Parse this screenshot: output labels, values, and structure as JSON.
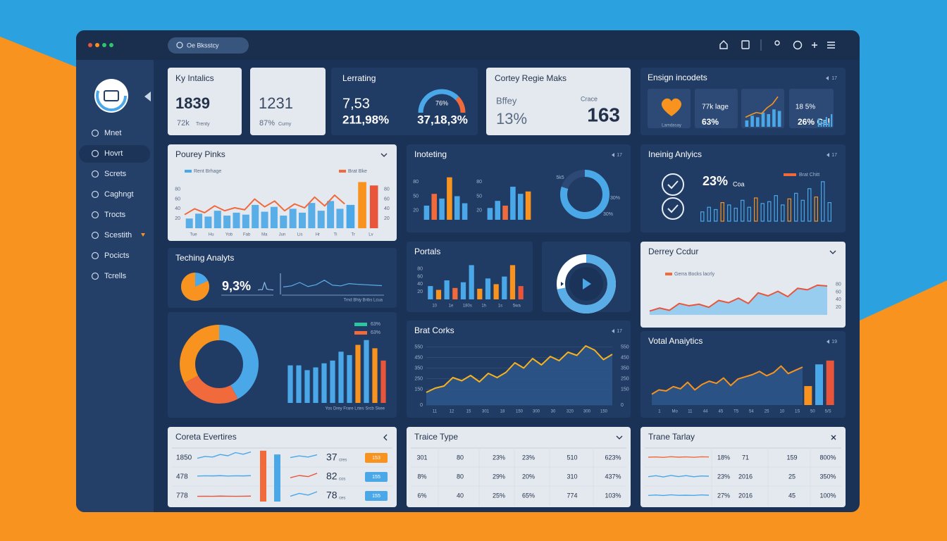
{
  "window": {
    "search": "Oe Bksstcy"
  },
  "sidebar": {
    "items": [
      "Mnet",
      "Hovrt",
      "Screts",
      "Caghngt",
      "Trocts",
      "Scestith",
      "Pocicts",
      "Tcrells"
    ]
  },
  "top_cards": {
    "metrics": {
      "title": "Ky Intalics",
      "value": "1839",
      "sub": "72k",
      "note": "Trenty"
    },
    "metrics2": {
      "value": "1231",
      "sub": "87%",
      "note": "Cumy"
    },
    "lerrating": {
      "title": "Lerrating",
      "value": "7,53",
      "sub": "211,98%",
      "gauge_value": 76,
      "gauge_label": "76%",
      "gauge_caption": "37,18,3%"
    },
    "regie": {
      "title": "Cortey Regie Maks",
      "left_label": "Bffey",
      "left_value": "13%",
      "right_label": "Crace",
      "right_value": "163"
    },
    "ensign": {
      "title": "Ensign incodets",
      "control": "17",
      "caption": "Lamdasay",
      "tile2_label": "77k lage",
      "tile2_value": "63%",
      "trend_bars": [
        20,
        35,
        30,
        45,
        40,
        55,
        50
      ],
      "trend_line": [
        30,
        38,
        45,
        42,
        60,
        72,
        95
      ],
      "tile4_label": "18 5%",
      "tile4_value": "26% Cal",
      "tile4_bars": [
        30,
        20,
        25,
        35,
        15,
        45
      ]
    }
  },
  "panels": [
    {
      "type": "area_bars",
      "title": "Pourey Pinks",
      "legend": [
        {
          "name": "Rent Brhage",
          "color": "#4aa8e8"
        },
        {
          "name": "Brat Bke",
          "color": "#f06a3c"
        }
      ],
      "ylim": [
        0,
        100
      ],
      "yticks": [
        20,
        40,
        60,
        80
      ],
      "line": [
        28,
        40,
        32,
        46,
        36,
        42,
        38,
        60,
        44,
        56,
        36,
        50,
        42,
        64,
        46,
        68,
        50
      ],
      "bars": [
        20,
        30,
        24,
        36,
        26,
        32,
        28,
        48,
        34,
        44,
        26,
        40,
        32,
        52,
        36,
        56,
        40
      ],
      "line_color": "#f06a3c",
      "fill_color": "#8cc8ef",
      "bar_color": "#5aaee8",
      "end_bars": [
        {
          "value": 48,
          "color": "#4aa8e8"
        },
        {
          "value": 95,
          "color": "#f7931e"
        },
        {
          "value": 88,
          "color": "#e8553a"
        }
      ],
      "xlabels": [
        "Tue",
        "Hu",
        "Yob",
        "Fab",
        "Ma",
        "Jun",
        "Lis",
        "Hr",
        "Ti",
        "Tr",
        "Lv"
      ]
    },
    {
      "type": "bar_groups",
      "title": "Inoteting",
      "control": "17",
      "ylim": [
        0,
        100
      ],
      "yticks": [
        20,
        50,
        80
      ],
      "groups": [
        {
          "values": [
            30,
            55,
            45,
            90,
            50,
            35
          ],
          "colors": [
            "#4aa8e8",
            "#f06a3c",
            "#4aa8e8",
            "#f7931e",
            "#4aa8e8",
            "#4aa8e8"
          ]
        },
        {
          "values": [
            25,
            40,
            30,
            70,
            55,
            60
          ],
          "colors": [
            "#4aa8e8",
            "#4aa8e8",
            "#f06a3c",
            "#4aa8e8",
            "#4aa8e8",
            "#f7931e"
          ]
        }
      ],
      "donut": 80,
      "donut_color": "#4aa8e8",
      "donut_labels": [
        "5k5",
        "30%",
        "30%"
      ]
    },
    {
      "type": "outline_bars",
      "title": "Ineinig Anlyics",
      "control": "17",
      "value": "23%",
      "unit": "Coa",
      "legend": [
        {
          "name": "Brat Chitt",
          "color": "#f06a3c"
        }
      ],
      "ylim": [
        0,
        100
      ],
      "values": [
        20,
        30,
        25,
        40,
        35,
        28,
        45,
        30,
        50,
        38,
        42,
        55,
        35,
        48,
        60,
        45,
        70,
        52,
        85,
        40
      ],
      "colors": [
        "#4aa8e8",
        "#4aa8e8",
        "#4aa8e8",
        "#f7931e",
        "#4aa8e8",
        "#4aa8e8",
        "#4aa8e8",
        "#4aa8e8",
        "#f7931e",
        "#4aa8e8",
        "#4aa8e8",
        "#4aa8e8",
        "#4aa8e8",
        "#f7931e",
        "#4aa8e8",
        "#4aa8e8",
        "#4aa8e8",
        "#f7931e",
        "#4aa8e8",
        "#4aa8e8"
      ]
    },
    {
      "type": "pie_spark",
      "title": "Teching Analyts",
      "pie": 82,
      "colors": [
        "#f7931e",
        "#4aa8e8"
      ],
      "value": "9,3%",
      "spark": [
        20,
        22,
        21,
        60,
        25,
        22,
        21,
        20
      ],
      "spark2": [
        30,
        35,
        50,
        32,
        40,
        60,
        38,
        35,
        45,
        42,
        40,
        38,
        36
      ],
      "caption": "Trnd Bhiy Bribs Lcua"
    },
    {
      "type": "donut_bars",
      "legend": [
        {
          "name": "63%",
          "color": "#2ec4a0"
        },
        {
          "name": "63%",
          "color": "#f06a3c"
        }
      ],
      "donut": [
        {
          "value": 42,
          "color": "#4aa8e8"
        },
        {
          "value": 25,
          "color": "#f06a3c"
        },
        {
          "value": 33,
          "color": "#f7931e"
        }
      ],
      "ylim": [
        0,
        100
      ],
      "values": [
        55,
        55,
        48,
        52,
        58,
        62,
        75,
        70,
        85,
        92,
        80,
        62
      ],
      "colors": [
        "#4aa8e8",
        "#4aa8e8",
        "#4aa8e8",
        "#4aa8e8",
        "#4aa8e8",
        "#4aa8e8",
        "#4aa8e8",
        "#4aa8e8",
        "#f7931e",
        "#4aa8e8",
        "#f7931e",
        "#e8553a"
      ],
      "caption": "Yos Drey Frare Lrtes Srcb Skee"
    },
    {
      "type": "bar",
      "title": "Portals",
      "ylim": [
        0,
        100
      ],
      "yticks": [
        20,
        40,
        60,
        80
      ],
      "values": [
        35,
        25,
        50,
        30,
        45,
        90,
        28,
        55,
        40,
        60,
        90,
        35
      ],
      "colors": [
        "#4aa8e8",
        "#f7931e",
        "#4aa8e8",
        "#f06a3c",
        "#4aa8e8",
        "#4aa8e8",
        "#f7931e",
        "#4aa8e8",
        "#f7931e",
        "#4aa8e8",
        "#f7931e",
        "#e8553a"
      ],
      "xlabels": [
        "10",
        "1e",
        "180s",
        "1h",
        "1s",
        "5wa"
      ]
    },
    {
      "type": "play_donut",
      "donut": 72,
      "donut_color": "#5aaee8"
    },
    {
      "type": "area",
      "title": "Derrey Ccdur",
      "legend": [
        {
          "name": "Gerra Bocks lacrly",
          "color": "#f06a3c"
        }
      ],
      "ylim": [
        0,
        100
      ],
      "yticks": [
        20,
        40,
        60,
        80
      ],
      "values": [
        10,
        18,
        12,
        30,
        24,
        28,
        20,
        38,
        32,
        44,
        30,
        58,
        50,
        62,
        48,
        70,
        66,
        78,
        76
      ],
      "line_color": "#e8553a",
      "fill_color": "#8cc8ef"
    },
    {
      "type": "area",
      "title": "Brat Corks",
      "control": "17",
      "ylim": [
        0,
        600
      ],
      "yticks": [
        0,
        150,
        250,
        350,
        450,
        550
      ],
      "values": [
        120,
        160,
        180,
        260,
        230,
        280,
        220,
        300,
        260,
        310,
        400,
        350,
        440,
        380,
        460,
        420,
        500,
        470,
        560,
        520,
        430,
        480
      ],
      "line_color": "#f7b21e",
      "fill_color": "#2d5689",
      "xlabels": [
        "11",
        "12",
        "15",
        "301",
        "18",
        "150",
        "300",
        "30",
        "320",
        "300",
        "150"
      ]
    },
    {
      "type": "area_bars",
      "title": "Votal Anaiytics",
      "control": "19",
      "ylim": [
        0,
        100
      ],
      "line": [
        20,
        28,
        26,
        34,
        30,
        42,
        28,
        38,
        44,
        40,
        50,
        36,
        48,
        52,
        56,
        62,
        54,
        60,
        72,
        58,
        64,
        70
      ],
      "line_color": "#f7931e",
      "fill_color": "#2d5689",
      "end_bars": [
        {
          "value": 35,
          "color": "#f7931e"
        },
        {
          "value": 75,
          "color": "#4aa8e8"
        },
        {
          "value": 82,
          "color": "#e8553a"
        }
      ],
      "xlabels": [
        "1",
        "Mo",
        "11",
        "44",
        "45",
        "T5",
        "54",
        "25",
        "10",
        "1S",
        "50",
        "5/S"
      ]
    }
  ],
  "tables": [
    {
      "title": "Coreta Evertires",
      "bars": [
        {
          "value": 95,
          "color": "#f06a3c"
        },
        {
          "value": 88,
          "color": "#4aa8e8"
        }
      ],
      "rows": [
        {
          "label": "1850",
          "spark": [
            30,
            45,
            40,
            60,
            50,
            75,
            62,
            80
          ],
          "color": "#4aa8e8",
          "spark2": [
            40,
            55,
            45,
            65
          ],
          "color2": "#4aa8e8",
          "value": "37",
          "unit": "cres",
          "badge": "153",
          "badge_color": "#f7931e"
        },
        {
          "label": "478",
          "spark": [
            40,
            42,
            41,
            43,
            40,
            42,
            41,
            43
          ],
          "color": "#4aa8e8",
          "spark2": [
            30,
            50,
            40,
            70
          ],
          "color2": "#e8553a",
          "value": "82",
          "unit": "cos",
          "badge": "155",
          "badge_color": "#4aa8e8"
        },
        {
          "label": "778",
          "spark": [
            30,
            31,
            30,
            32,
            31,
            30,
            31,
            32
          ],
          "color": "#e8553a",
          "spark2": [
            35,
            60,
            45,
            75
          ],
          "color2": "#4aa8e8",
          "value": "78",
          "unit": "ces",
          "badge": "155",
          "badge_color": "#4aa8e8"
        }
      ]
    },
    {
      "title": "Traice Type",
      "rows": [
        [
          "301",
          "80",
          "23%",
          "23%",
          "510",
          "623%"
        ],
        [
          "8%",
          "80",
          "29%",
          "20%",
          "310",
          "437%"
        ],
        [
          "6%",
          "40",
          "25%",
          "65%",
          "774",
          "103%"
        ]
      ]
    },
    {
      "title": "Trane Tarlay",
      "rows": [
        {
          "spark": [
            50,
            52,
            48,
            55,
            50,
            53,
            49,
            54,
            52
          ],
          "color": "#f06a3c",
          "cells": [
            "18%",
            "71",
            "159",
            "800%"
          ]
        },
        {
          "spark": [
            45,
            55,
            42,
            58,
            46,
            56,
            44,
            52,
            50
          ],
          "color": "#4aa8e8",
          "cells": [
            "23%",
            "2016",
            "25",
            "350%"
          ]
        },
        {
          "spark": [
            48,
            52,
            47,
            54,
            49,
            50,
            48,
            53,
            50
          ],
          "color": "#4aa8e8",
          "cells": [
            "27%",
            "2016",
            "45",
            "100%"
          ]
        }
      ]
    }
  ]
}
